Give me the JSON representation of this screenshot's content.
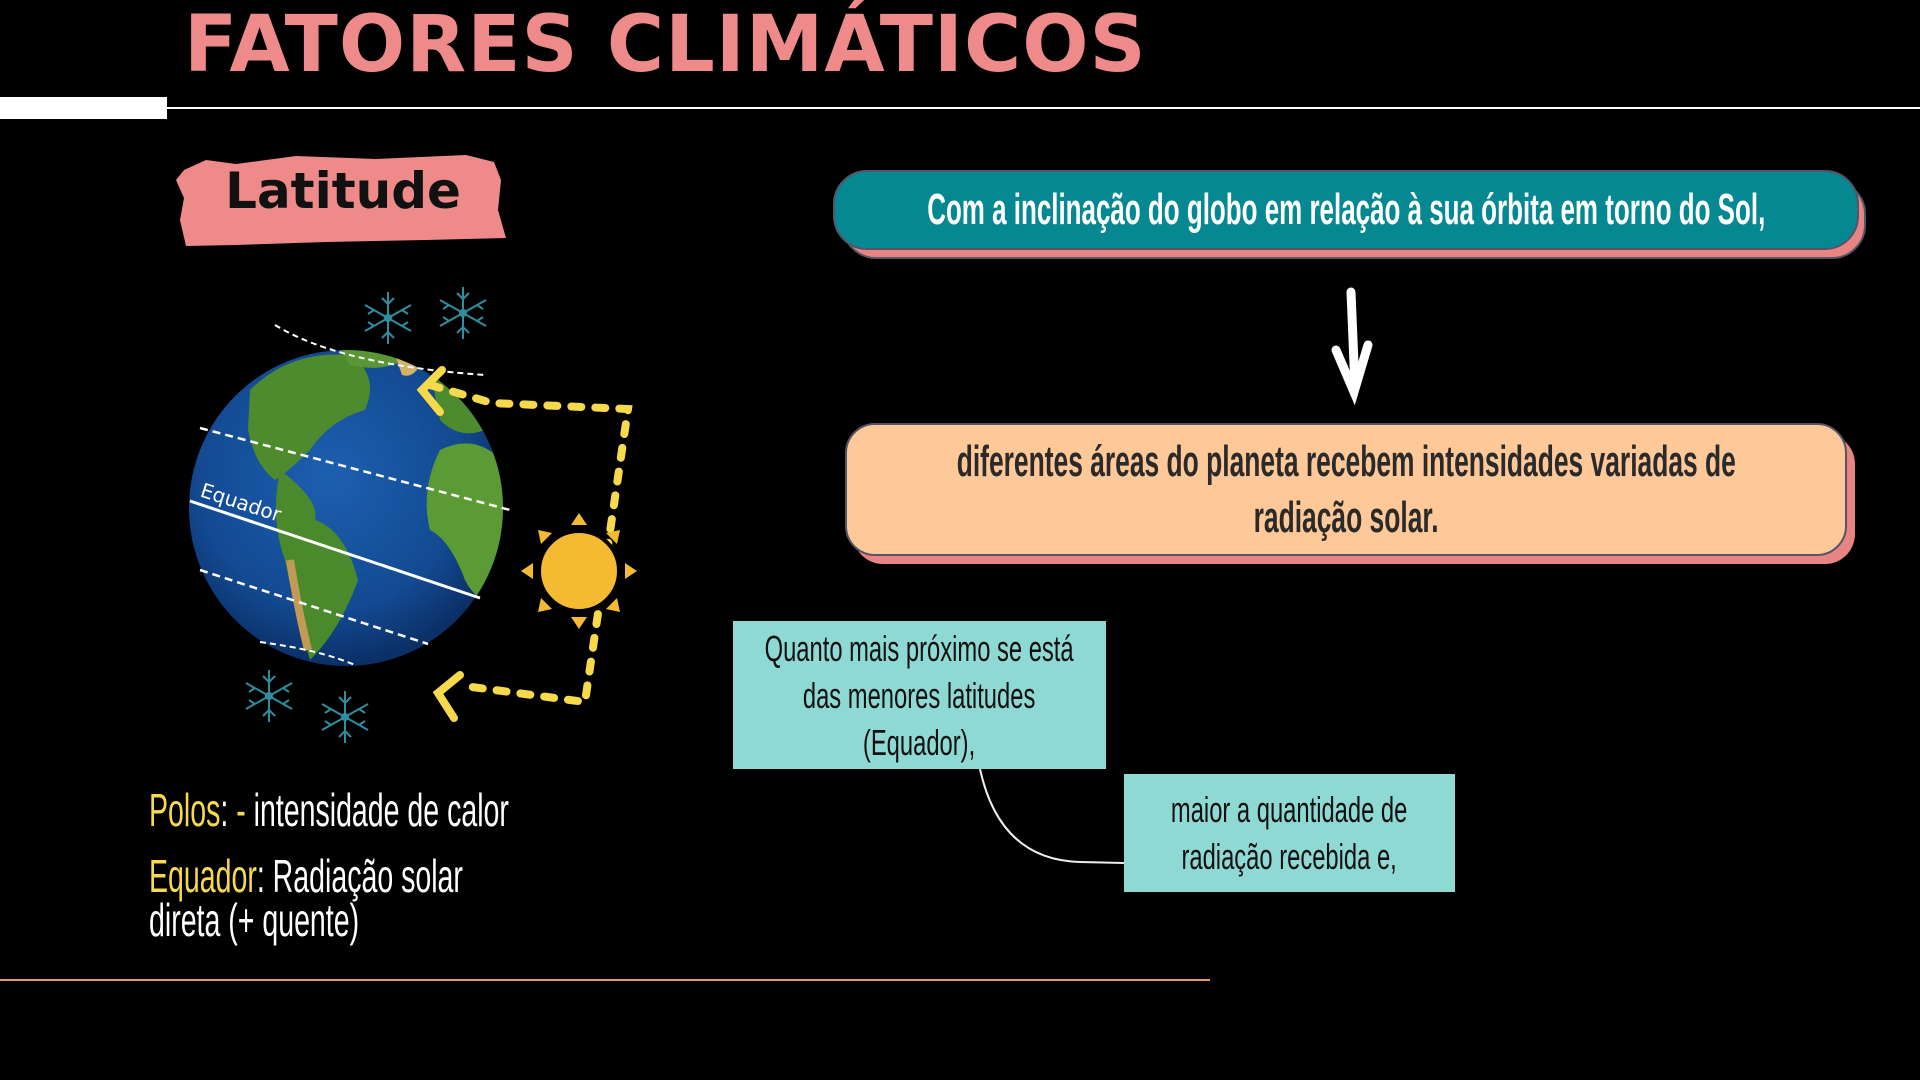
{
  "title": "FATORES CLIMÁTICOS",
  "badge": {
    "label": "Latitude",
    "color": "#ef8a8a"
  },
  "globe": {
    "equator_label": "Equador"
  },
  "legend": {
    "poles_term": "Polos",
    "poles_sep": ":",
    "poles_minus": " -",
    "poles_text": " intensidade de calor",
    "equator_term": "Equador",
    "equator_sep": ":",
    "equator_text_line1": " Radiação solar",
    "equator_text_line2": "direta (+ quente)"
  },
  "flow": {
    "top_box": "Com a inclinação do globo em relação à sua órbita em torno do Sol,",
    "bottom_box_lines": [
      "diferentes áreas do planeta recebem intensidades variadas de",
      "radiação solar."
    ]
  },
  "notes": {
    "note1_lines": [
      "Quanto mais próximo se está",
      "das menores latitudes",
      "(Equador),"
    ],
    "note2_lines": [
      "maior a quantidade de",
      "radiação recebida e,"
    ]
  },
  "colors": {
    "teal": "#068892",
    "peach": "#ffc898",
    "mint": "#8fd9d4",
    "pink": "#ef8a8a",
    "yellow": "#f7d94c",
    "orange_line": "#e8946a"
  }
}
